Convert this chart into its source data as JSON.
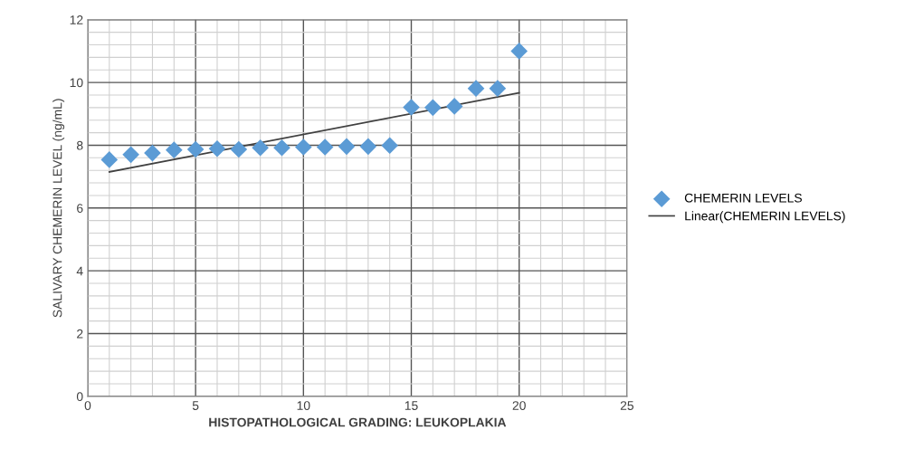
{
  "chart_data": {
    "type": "scatter",
    "xlabel": "HISTOPATHOLOGICAL GRADING: LEUKOPLAKIA",
    "ylabel": "SALIVARY CHEMERIN LEVEL (ng/mL)",
    "x": [
      1,
      2,
      3,
      4,
      5,
      6,
      7,
      8,
      9,
      10,
      11,
      12,
      13,
      14,
      15,
      16,
      17,
      18,
      19,
      20
    ],
    "series": [
      {
        "name": "CHEMERIN LEVELS",
        "color": "#5b9bd5",
        "marker": "diamond",
        "values": [
          7.54,
          7.7,
          7.75,
          7.85,
          7.87,
          7.89,
          7.87,
          7.92,
          7.92,
          7.94,
          7.94,
          7.96,
          7.96,
          7.99,
          9.21,
          9.2,
          9.24,
          9.81,
          9.81,
          11.0
        ]
      },
      {
        "name": "Linear(CHEMERIN LEVELS)",
        "type": "line",
        "color": "#404040",
        "marker": "none",
        "x": [
          1,
          20
        ],
        "values": [
          7.15,
          9.67
        ]
      }
    ],
    "xlim": [
      0,
      25
    ],
    "xticks": [
      0,
      5,
      10,
      15,
      20,
      25
    ],
    "ylim": [
      0,
      12
    ],
    "yticks": [
      0,
      2,
      4,
      6,
      8,
      10,
      12
    ],
    "grid": true,
    "legend": "right"
  }
}
